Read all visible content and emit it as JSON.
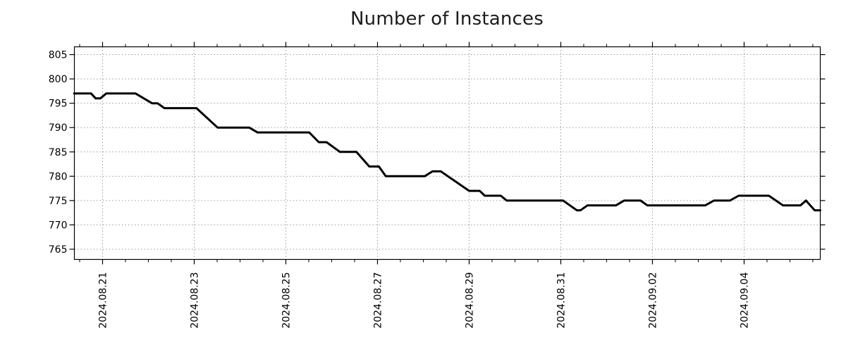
{
  "chart_data": {
    "type": "line",
    "title": "Number of Instances",
    "xlabel": "",
    "ylabel": "",
    "background_color": "#ffffff",
    "line_color": "#000000",
    "axis_color": "#000000",
    "grid_color": "#9c9c9c",
    "grid_style": "dotted",
    "legend": "none",
    "x_axis": {
      "unit": "date",
      "range_days": [
        -0.615,
        15.662
      ],
      "major_ticks": [
        {
          "offset_days": 0,
          "label": "2024.08.21"
        },
        {
          "offset_days": 2,
          "label": "2024.08.23"
        },
        {
          "offset_days": 4,
          "label": "2024.08.25"
        },
        {
          "offset_days": 6,
          "label": "2024.08.27"
        },
        {
          "offset_days": 8,
          "label": "2024.08.29"
        },
        {
          "offset_days": 10,
          "label": "2024.08.31"
        },
        {
          "offset_days": 12,
          "label": "2024.09.02"
        },
        {
          "offset_days": 14,
          "label": "2024.09.04"
        }
      ],
      "minor_tick_interval_days": 0.5,
      "tick_label_rotation_deg": -90
    },
    "y_axis": {
      "range": [
        762.9,
        806.6
      ],
      "ticks": [
        765,
        770,
        775,
        780,
        785,
        790,
        795,
        800,
        805
      ]
    },
    "series": [
      {
        "name": "instances",
        "color": "#000000",
        "stroke_width": 3,
        "points": [
          [
            -0.62,
            797
          ],
          [
            -0.25,
            797
          ],
          [
            -0.15,
            796
          ],
          [
            -0.05,
            796
          ],
          [
            0.08,
            797
          ],
          [
            0.72,
            797
          ],
          [
            1.08,
            795
          ],
          [
            1.2,
            795
          ],
          [
            1.35,
            794
          ],
          [
            2.05,
            794
          ],
          [
            2.51,
            790
          ],
          [
            3.2,
            790
          ],
          [
            3.38,
            789
          ],
          [
            4.51,
            789
          ],
          [
            4.72,
            787
          ],
          [
            4.89,
            787
          ],
          [
            5.18,
            785
          ],
          [
            5.54,
            785
          ],
          [
            5.82,
            782
          ],
          [
            6.03,
            782
          ],
          [
            6.18,
            780
          ],
          [
            7.03,
            780
          ],
          [
            7.2,
            781
          ],
          [
            7.38,
            781
          ],
          [
            8.0,
            777
          ],
          [
            8.23,
            777
          ],
          [
            8.34,
            776
          ],
          [
            8.69,
            776
          ],
          [
            8.82,
            775
          ],
          [
            10.05,
            775
          ],
          [
            10.35,
            773
          ],
          [
            10.43,
            773
          ],
          [
            10.58,
            774
          ],
          [
            11.2,
            774
          ],
          [
            11.38,
            775
          ],
          [
            11.74,
            775
          ],
          [
            11.89,
            774
          ],
          [
            13.15,
            774
          ],
          [
            13.34,
            775
          ],
          [
            13.69,
            775
          ],
          [
            13.88,
            776
          ],
          [
            14.54,
            776
          ],
          [
            14.85,
            774
          ],
          [
            15.23,
            774
          ],
          [
            15.35,
            775
          ],
          [
            15.54,
            773
          ],
          [
            15.66,
            773
          ]
        ]
      }
    ]
  }
}
